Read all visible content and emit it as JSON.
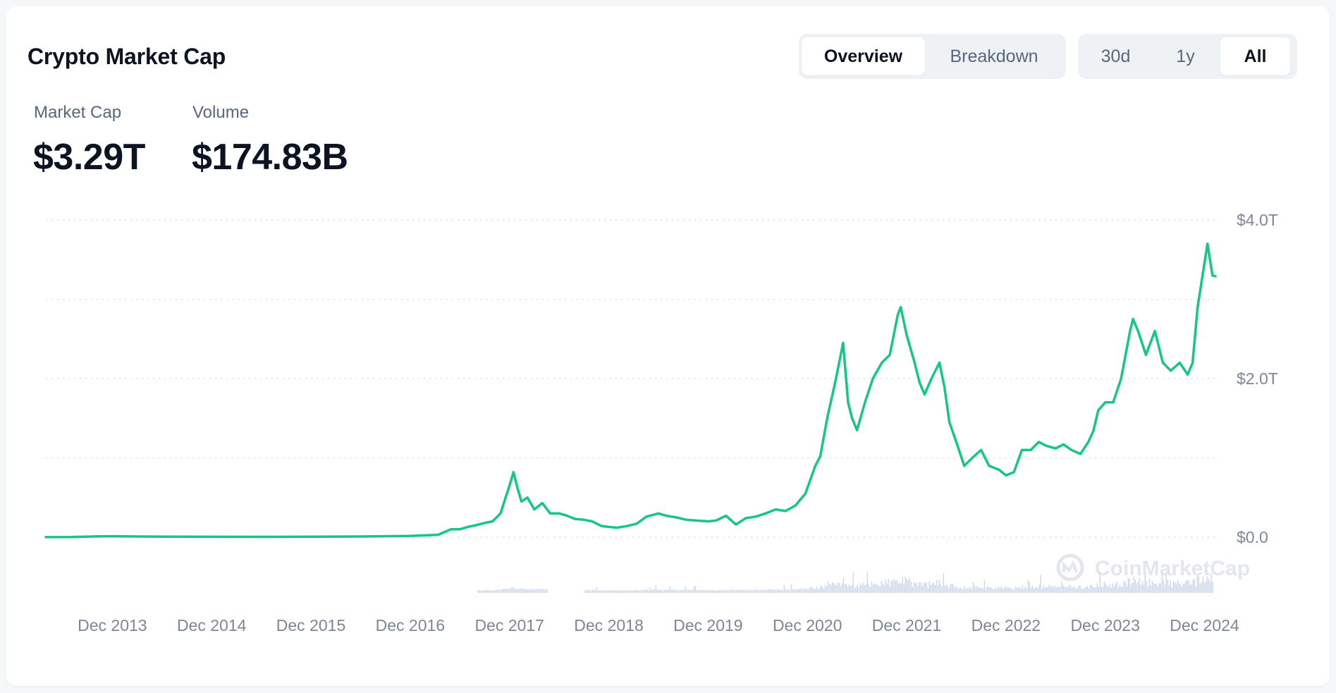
{
  "header": {
    "title": "Crypto Market Cap"
  },
  "view_tabs": [
    {
      "label": "Overview",
      "active": true
    },
    {
      "label": "Breakdown",
      "active": false
    }
  ],
  "range_tabs": [
    {
      "label": "30d",
      "active": false
    },
    {
      "label": "1y",
      "active": false
    },
    {
      "label": "All",
      "active": true
    }
  ],
  "stats": {
    "market_cap": {
      "label": "Market Cap",
      "value": "$3.29T"
    },
    "volume": {
      "label": "Volume",
      "value": "$174.83B"
    }
  },
  "watermark": "CoinMarketCap",
  "colors": {
    "line": "#16c784",
    "volume": "#cfd6e4",
    "grid": "#d5d9df",
    "text_muted": "#7d8698"
  },
  "chart_data": {
    "type": "line",
    "title": "",
    "xlabel": "",
    "ylabel": "",
    "x_tick_labels": [
      "Dec 2013",
      "Dec 2014",
      "Dec 2015",
      "Dec 2016",
      "Dec 2017",
      "Dec 2018",
      "Dec 2019",
      "Dec 2020",
      "Dec 2021",
      "Dec 2022",
      "Dec 2023",
      "Dec 2024"
    ],
    "y_tick_labels": [
      "$0.0",
      "$2.0T",
      "$4.0T"
    ],
    "ylim_trillions": [
      0,
      4.0
    ],
    "grid": true,
    "series": [
      {
        "x": [
          2013.25,
          2013.5,
          2013.75,
          2013.92,
          2014.2,
          2014.5,
          2014.9,
          2015.5,
          2016.0,
          2016.5,
          2016.9,
          2017.2,
          2017.33,
          2017.42,
          2017.5,
          2017.58,
          2017.67,
          2017.75,
          2017.83,
          2017.88,
          2017.92,
          2017.96,
          2018.0,
          2018.04,
          2018.1,
          2018.17,
          2018.25,
          2018.33,
          2018.42,
          2018.5,
          2018.58,
          2018.67,
          2018.75,
          2018.85,
          2018.92,
          2019.0,
          2019.1,
          2019.2,
          2019.3,
          2019.42,
          2019.5,
          2019.6,
          2019.7,
          2019.8,
          2019.92,
          2020.0,
          2020.1,
          2020.2,
          2020.3,
          2020.4,
          2020.5,
          2020.6,
          2020.7,
          2020.8,
          2020.9,
          2021.0,
          2021.05,
          2021.12,
          2021.2,
          2021.28,
          2021.33,
          2021.37,
          2021.42,
          2021.5,
          2021.58,
          2021.67,
          2021.75,
          2021.83,
          2021.86,
          2021.92,
          2022.0,
          2022.05,
          2022.1,
          2022.17,
          2022.25,
          2022.3,
          2022.35,
          2022.42,
          2022.5,
          2022.58,
          2022.67,
          2022.75,
          2022.85,
          2022.92,
          2023.0,
          2023.08,
          2023.17,
          2023.25,
          2023.33,
          2023.42,
          2023.5,
          2023.58,
          2023.67,
          2023.75,
          2023.8,
          2023.85,
          2023.92,
          2024.0,
          2024.08,
          2024.17,
          2024.2,
          2024.25,
          2024.33,
          2024.42,
          2024.5,
          2024.58,
          2024.67,
          2024.75,
          2024.8,
          2024.85,
          2024.9,
          2024.95,
          2025.0,
          2025.03
        ],
        "y": [
          0.001,
          0.002,
          0.01,
          0.012,
          0.009,
          0.007,
          0.005,
          0.004,
          0.007,
          0.01,
          0.016,
          0.03,
          0.1,
          0.1,
          0.13,
          0.15,
          0.18,
          0.2,
          0.3,
          0.5,
          0.65,
          0.82,
          0.62,
          0.45,
          0.5,
          0.35,
          0.43,
          0.3,
          0.3,
          0.27,
          0.23,
          0.22,
          0.2,
          0.14,
          0.13,
          0.12,
          0.14,
          0.17,
          0.26,
          0.3,
          0.27,
          0.25,
          0.22,
          0.21,
          0.2,
          0.21,
          0.27,
          0.16,
          0.24,
          0.26,
          0.3,
          0.35,
          0.33,
          0.4,
          0.55,
          0.9,
          1.02,
          1.5,
          1.95,
          2.45,
          1.7,
          1.5,
          1.35,
          1.7,
          2.0,
          2.2,
          2.3,
          2.8,
          2.9,
          2.55,
          2.2,
          1.95,
          1.8,
          2.0,
          2.2,
          1.9,
          1.45,
          1.2,
          0.9,
          1.0,
          1.1,
          0.9,
          0.85,
          0.78,
          0.82,
          1.1,
          1.1,
          1.2,
          1.15,
          1.12,
          1.17,
          1.1,
          1.05,
          1.2,
          1.34,
          1.6,
          1.7,
          1.7,
          2.0,
          2.6,
          2.75,
          2.6,
          2.3,
          2.6,
          2.2,
          2.1,
          2.2,
          2.05,
          2.2,
          2.9,
          3.3,
          3.7,
          3.3,
          3.29
        ]
      }
    ]
  }
}
